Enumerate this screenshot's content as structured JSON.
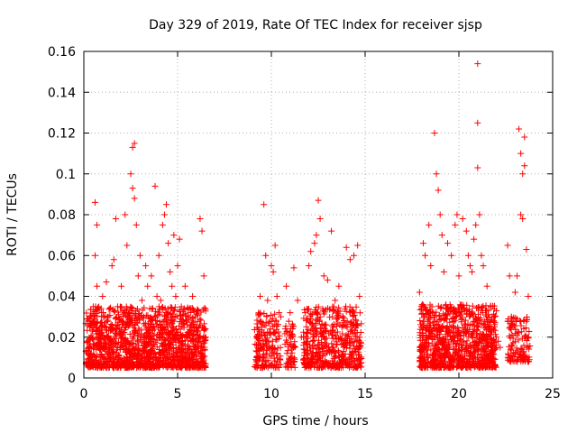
{
  "chart_data": {
    "type": "scatter",
    "title": "Day 329 of 2019, Rate Of TEC Index for receiver sjsp",
    "xlabel": "GPS time / hours",
    "ylabel": "ROTI / TECUs",
    "xlim": [
      0,
      25
    ],
    "ylim": [
      0,
      0.16
    ],
    "x_ticks": [
      "0",
      "5",
      "10",
      "15",
      "20",
      "25"
    ],
    "y_ticks": [
      "0",
      "0.02",
      "0.04",
      "0.06",
      "0.08",
      "0.1",
      "0.12",
      "0.14",
      "0.16"
    ],
    "grid": true,
    "marker": "+",
    "color": "#ff0000",
    "series": [
      {
        "points": [
          [
            0.2,
            0.018
          ],
          [
            0.3,
            0.028
          ],
          [
            0.4,
            0.012
          ],
          [
            0.5,
            0.035
          ],
          [
            0.6,
            0.086
          ],
          [
            0.6,
            0.06
          ],
          [
            0.7,
            0.075
          ],
          [
            0.7,
            0.045
          ],
          [
            0.8,
            0.02
          ],
          [
            0.9,
            0.015
          ],
          [
            1.0,
            0.04
          ],
          [
            1.1,
            0.025
          ],
          [
            1.2,
            0.047
          ],
          [
            1.3,
            0.03
          ],
          [
            1.4,
            0.018
          ],
          [
            1.5,
            0.055
          ],
          [
            1.6,
            0.058
          ],
          [
            1.7,
            0.078
          ],
          [
            1.8,
            0.035
          ],
          [
            1.9,
            0.022
          ],
          [
            2.0,
            0.045
          ],
          [
            2.1,
            0.018
          ],
          [
            2.2,
            0.08
          ],
          [
            2.3,
            0.065
          ],
          [
            2.4,
            0.03
          ],
          [
            2.5,
            0.1
          ],
          [
            2.6,
            0.113
          ],
          [
            2.6,
            0.093
          ],
          [
            2.7,
            0.115
          ],
          [
            2.7,
            0.088
          ],
          [
            2.8,
            0.075
          ],
          [
            2.9,
            0.05
          ],
          [
            3.0,
            0.06
          ],
          [
            3.1,
            0.038
          ],
          [
            3.2,
            0.03
          ],
          [
            3.3,
            0.055
          ],
          [
            3.4,
            0.045
          ],
          [
            3.5,
            0.02
          ],
          [
            3.6,
            0.05
          ],
          [
            3.7,
            0.025
          ],
          [
            3.8,
            0.094
          ],
          [
            3.9,
            0.04
          ],
          [
            4.0,
            0.06
          ],
          [
            4.1,
            0.038
          ],
          [
            4.2,
            0.075
          ],
          [
            4.3,
            0.08
          ],
          [
            4.4,
            0.085
          ],
          [
            4.5,
            0.066
          ],
          [
            4.6,
            0.052
          ],
          [
            4.7,
            0.045
          ],
          [
            4.8,
            0.07
          ],
          [
            4.9,
            0.04
          ],
          [
            5.0,
            0.055
          ],
          [
            5.1,
            0.068
          ],
          [
            5.2,
            0.035
          ],
          [
            5.4,
            0.045
          ],
          [
            5.6,
            0.03
          ],
          [
            5.8,
            0.04
          ],
          [
            6.0,
            0.025
          ],
          [
            6.2,
            0.078
          ],
          [
            6.3,
            0.072
          ],
          [
            6.4,
            0.05
          ],
          [
            6.5,
            0.02
          ],
          [
            9.4,
            0.04
          ],
          [
            9.5,
            0.025
          ],
          [
            9.6,
            0.085
          ],
          [
            9.7,
            0.06
          ],
          [
            9.8,
            0.038
          ],
          [
            10.0,
            0.055
          ],
          [
            10.1,
            0.052
          ],
          [
            10.2,
            0.065
          ],
          [
            10.3,
            0.04
          ],
          [
            10.5,
            0.03
          ],
          [
            10.8,
            0.045
          ],
          [
            11.0,
            0.032
          ],
          [
            11.2,
            0.054
          ],
          [
            11.4,
            0.038
          ],
          [
            11.6,
            0.02
          ],
          [
            11.8,
            0.032
          ],
          [
            12.0,
            0.055
          ],
          [
            12.1,
            0.062
          ],
          [
            12.3,
            0.066
          ],
          [
            12.4,
            0.07
          ],
          [
            12.5,
            0.087
          ],
          [
            12.6,
            0.078
          ],
          [
            12.8,
            0.05
          ],
          [
            13.0,
            0.048
          ],
          [
            13.2,
            0.072
          ],
          [
            13.4,
            0.038
          ],
          [
            13.6,
            0.045
          ],
          [
            13.8,
            0.03
          ],
          [
            14.0,
            0.064
          ],
          [
            14.2,
            0.058
          ],
          [
            14.4,
            0.06
          ],
          [
            14.6,
            0.065
          ],
          [
            14.7,
            0.04
          ],
          [
            17.9,
            0.042
          ],
          [
            18.0,
            0.025
          ],
          [
            18.1,
            0.066
          ],
          [
            18.2,
            0.06
          ],
          [
            18.4,
            0.075
          ],
          [
            18.5,
            0.055
          ],
          [
            18.7,
            0.12
          ],
          [
            18.8,
            0.1
          ],
          [
            18.9,
            0.092
          ],
          [
            19.0,
            0.08
          ],
          [
            19.1,
            0.07
          ],
          [
            19.2,
            0.052
          ],
          [
            19.4,
            0.066
          ],
          [
            19.6,
            0.06
          ],
          [
            19.8,
            0.075
          ],
          [
            19.9,
            0.08
          ],
          [
            20.0,
            0.05
          ],
          [
            20.2,
            0.078
          ],
          [
            20.4,
            0.072
          ],
          [
            20.5,
            0.06
          ],
          [
            20.6,
            0.055
          ],
          [
            20.7,
            0.052
          ],
          [
            20.8,
            0.068
          ],
          [
            20.9,
            0.075
          ],
          [
            21.0,
            0.154
          ],
          [
            21.0,
            0.125
          ],
          [
            21.0,
            0.103
          ],
          [
            21.1,
            0.08
          ],
          [
            21.2,
            0.06
          ],
          [
            21.3,
            0.055
          ],
          [
            21.5,
            0.045
          ],
          [
            21.7,
            0.035
          ],
          [
            21.9,
            0.03
          ],
          [
            22.0,
            0.02
          ],
          [
            22.1,
            0.018
          ],
          [
            22.2,
            0.015
          ],
          [
            22.6,
            0.065
          ],
          [
            22.7,
            0.05
          ],
          [
            22.8,
            0.03
          ],
          [
            23.0,
            0.042
          ],
          [
            23.1,
            0.05
          ],
          [
            23.2,
            0.122
          ],
          [
            23.3,
            0.11
          ],
          [
            23.3,
            0.08
          ],
          [
            23.4,
            0.1
          ],
          [
            23.4,
            0.078
          ],
          [
            23.5,
            0.118
          ],
          [
            23.5,
            0.104
          ],
          [
            23.6,
            0.063
          ],
          [
            23.7,
            0.04
          ]
        ],
        "dense_bands": [
          {
            "x": [
              0.1,
              6.5
            ],
            "y": [
              0.005,
              0.035
            ],
            "density": 1400
          },
          {
            "x": [
              9.1,
              10.5
            ],
            "y": [
              0.005,
              0.032
            ],
            "density": 180
          },
          {
            "x": [
              10.7,
              11.3
            ],
            "y": [
              0.005,
              0.028
            ],
            "density": 60
          },
          {
            "x": [
              11.7,
              14.8
            ],
            "y": [
              0.005,
              0.035
            ],
            "density": 500
          },
          {
            "x": [
              17.9,
              22.0
            ],
            "y": [
              0.005,
              0.036
            ],
            "density": 900
          },
          {
            "x": [
              22.6,
              23.8
            ],
            "y": [
              0.008,
              0.03
            ],
            "density": 120
          }
        ]
      }
    ]
  }
}
